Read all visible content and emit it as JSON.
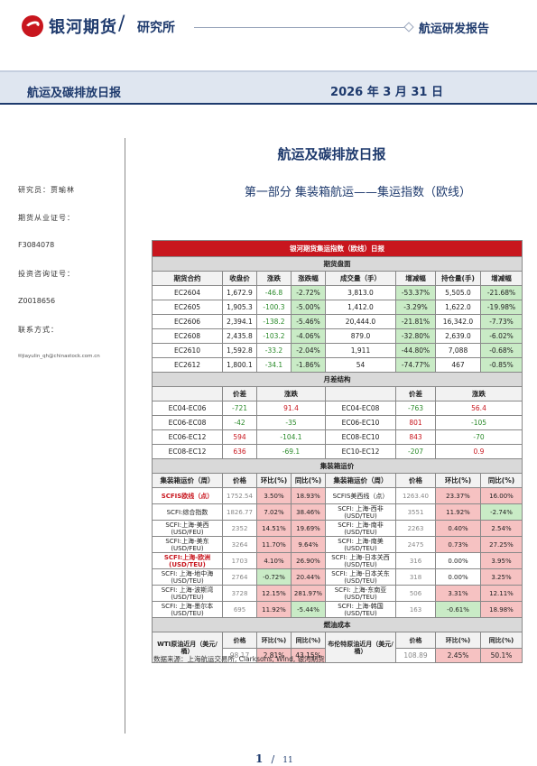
{
  "header": {
    "logo_text": "银河期货",
    "dept": "研究所",
    "report_type": "航运研发报告"
  },
  "band": {
    "title": "航运及碳排放日报",
    "date": "2026 年 3 月 31 日"
  },
  "sidebar": {
    "researcher": "研究员：贾瑜林",
    "license_label": "期货从业证号：",
    "license_no": "F3084078",
    "advisor_label": "投资咨询证号：",
    "advisor_no": "Z0018656",
    "contact_label": "联系方式：",
    "email": "jiayulin_qh@chinastock.com.cn"
  },
  "doc_title": "航运及碳排放日报",
  "section_title": "第一部分    集装箱航运——集运指数（欧线）",
  "table": {
    "title": "银河期货集运指数（欧线）日报",
    "futures": {
      "caption": "期货盘面",
      "headers": [
        "期货合约",
        "收盘价",
        "涨跌",
        "涨跌幅",
        "成交量（手）",
        "增减幅",
        "持仓量(手)",
        "增减幅"
      ],
      "rows": [
        [
          "EC2604",
          "1,672.9",
          "-46.8",
          "-2.72%",
          "3,813.0",
          "-53.37%",
          "5,505.0",
          "-21.68%"
        ],
        [
          "EC2605",
          "1,905.3",
          "-100.3",
          "-5.00%",
          "1,412.0",
          "-3.29%",
          "1,622.0",
          "-19.98%"
        ],
        [
          "EC2606",
          "2,394.1",
          "-138.2",
          "-5.46%",
          "20,444.0",
          "-21.81%",
          "16,342.0",
          "-7.73%"
        ],
        [
          "EC2608",
          "2,435.8",
          "-103.2",
          "-4.06%",
          "879.0",
          "-32.80%",
          "2,639.0",
          "-6.02%"
        ],
        [
          "EC2610",
          "1,592.8",
          "-33.2",
          "-2.04%",
          "1,911",
          "-44.80%",
          "7,088",
          "-0.68%"
        ],
        [
          "EC2612",
          "1,800.1",
          "-34.1",
          "-1.86%",
          "54",
          "-74.77%",
          "467",
          "-0.85%"
        ]
      ]
    },
    "spread": {
      "caption": "月差结构",
      "headers": [
        "",
        "价差",
        "涨跌",
        "",
        "价差",
        "涨跌"
      ],
      "rows": [
        [
          "EC04-EC06",
          "-721",
          "91.4",
          "EC04-EC08",
          "-763",
          "56.4"
        ],
        [
          "EC06-EC08",
          "-42",
          "-35",
          "EC06-EC10",
          "801",
          "-105"
        ],
        [
          "EC06-EC12",
          "594",
          "-104.1",
          "EC08-EC10",
          "843",
          "-70"
        ],
        [
          "EC08-EC12",
          "636",
          "-69.1",
          "EC10-EC12",
          "-207",
          "0.9"
        ]
      ]
    },
    "freight": {
      "caption": "集装箱运价",
      "headers": [
        "集装箱运价（周）",
        "价格",
        "环比(%)",
        "同比(%)",
        "集装箱运价（周）",
        "价格",
        "环比(%)",
        "同比(%)"
      ],
      "rows": [
        [
          "SCFIS欧线（点）",
          "1752.54",
          "3.50%",
          "18.93%",
          "SCFIS美西线（点）",
          "1263.40",
          "23.37%",
          "16.00%"
        ],
        [
          "SCFI:综合指数",
          "1826.77",
          "7.02%",
          "38.46%",
          "SCFI: 上海-西非(USD/TEU)",
          "3551",
          "11.92%",
          "-2.74%"
        ],
        [
          "SCFI:上海-美西(USD/FEU)",
          "2352",
          "14.51%",
          "19.69%",
          "SCFI: 上海-南非(USD/TEU)",
          "2263",
          "0.40%",
          "2.54%"
        ],
        [
          "SCFI:上海-美东(USD/FEU)",
          "3264",
          "11.70%",
          "9.64%",
          "SCFI: 上海-南美(USD/TEU)",
          "2475",
          "0.73%",
          "27.25%"
        ],
        [
          "SCFI:上海-欧洲(USD/TEU)",
          "1703",
          "4.10%",
          "26.90%",
          "SCFI: 上海-日本关西(USD/TEU)",
          "316",
          "0.00%",
          "3.95%"
        ],
        [
          "SCFI: 上海-地中海(USD/TEU)",
          "2764",
          "-0.72%",
          "20.44%",
          "SCFI: 上海-日本关东(USD/TEU)",
          "318",
          "0.00%",
          "3.25%"
        ],
        [
          "SCFI: 上海-波斯湾(USD/TEU)",
          "3728",
          "12.15%",
          "281.97%",
          "SCFI: 上海-东南亚(USD/TEU)",
          "506",
          "3.31%",
          "12.11%"
        ],
        [
          "SCFI: 上海-墨尔本(USD/TEU)",
          "695",
          "11.92%",
          "-5.44%",
          "SCFI: 上海-韩国(USD/TEU)",
          "163",
          "-0.61%",
          "18.98%"
        ]
      ]
    },
    "fuel": {
      "caption": "燃油成本",
      "headers": [
        "价格",
        "环比(%)",
        "同比(%)",
        "价格",
        "环比(%)",
        "同比(%)"
      ],
      "wti_label": "WTI原油近月（美元/桶）",
      "brent_label": "布伦特原油近月（美元/桶）",
      "values": [
        "98.17",
        "2.81%",
        "43.15%",
        "108.89",
        "2.45%",
        "50.1%"
      ]
    }
  },
  "source": "数据来源：上海航运交易所, Clarksons, Wind, 银河期货",
  "page": {
    "current": "1",
    "sep": "/",
    "total": "11"
  }
}
